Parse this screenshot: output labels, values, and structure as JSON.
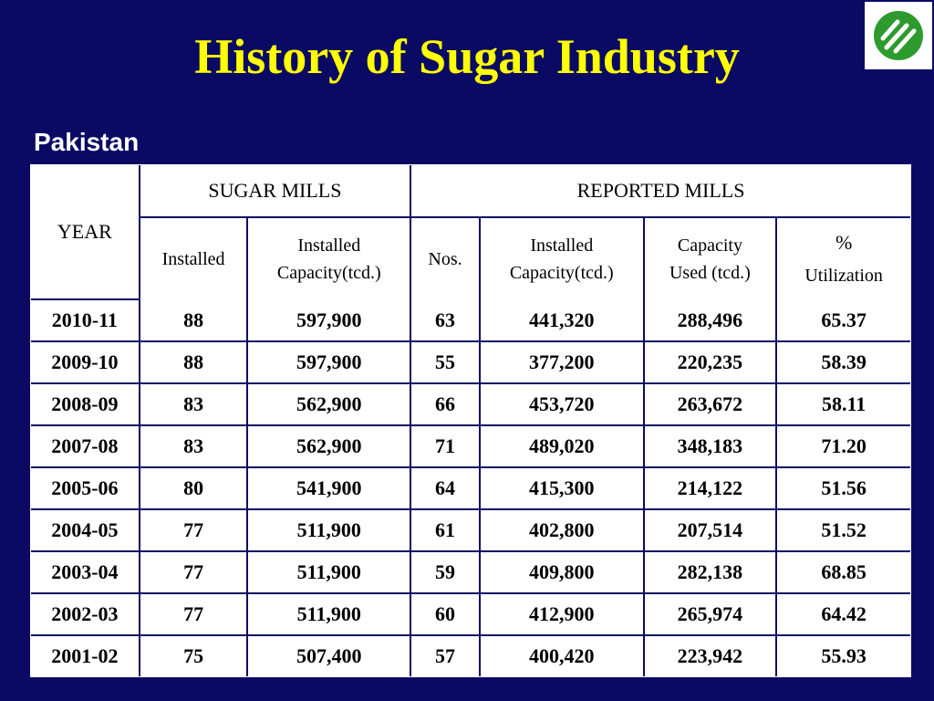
{
  "title": "History of Sugar Industry",
  "subtitle": "Pakistan",
  "logo_icon": "green-stripes-logo-icon",
  "colors": {
    "background": "#0a0a64",
    "title": "#ffff00",
    "logo_green": "#2e9a2e"
  },
  "table": {
    "year_header": "YEAR",
    "group_headers": {
      "sugar_mills": "SUGAR MILLS",
      "reported_mills": "REPORTED MILLS"
    },
    "sub_headers": {
      "installed": "Installed",
      "installed_capacity_line1": "Installed",
      "installed_capacity_line2": "Capacity(tcd.)",
      "nos": "Nos.",
      "reported_installed_capacity_line1": "Installed",
      "reported_installed_capacity_line2": "Capacity(tcd.)",
      "capacity_used_line1": "Capacity",
      "capacity_used_line2": "Used (tcd.)",
      "utilization_symbol": "%",
      "utilization_label": "Utilization"
    },
    "rows": [
      {
        "year": "2010-11",
        "installed": "88",
        "installed_capacity": "597,900",
        "nos": "63",
        "reported_capacity": "441,320",
        "capacity_used": "288,496",
        "utilization": "65.37"
      },
      {
        "year": "2009-10",
        "installed": "88",
        "installed_capacity": "597,900",
        "nos": "55",
        "reported_capacity": "377,200",
        "capacity_used": "220,235",
        "utilization": "58.39"
      },
      {
        "year": "2008-09",
        "installed": "83",
        "installed_capacity": "562,900",
        "nos": "66",
        "reported_capacity": "453,720",
        "capacity_used": "263,672",
        "utilization": "58.11"
      },
      {
        "year": "2007-08",
        "installed": "83",
        "installed_capacity": "562,900",
        "nos": "71",
        "reported_capacity": "489,020",
        "capacity_used": "348,183",
        "utilization": "71.20"
      },
      {
        "year": "2005-06",
        "installed": "80",
        "installed_capacity": "541,900",
        "nos": "64",
        "reported_capacity": "415,300",
        "capacity_used": "214,122",
        "utilization": "51.56"
      },
      {
        "year": "2004-05",
        "installed": "77",
        "installed_capacity": "511,900",
        "nos": "61",
        "reported_capacity": "402,800",
        "capacity_used": "207,514",
        "utilization": "51.52"
      },
      {
        "year": "2003-04",
        "installed": "77",
        "installed_capacity": "511,900",
        "nos": "59",
        "reported_capacity": "409,800",
        "capacity_used": "282,138",
        "utilization": "68.85"
      },
      {
        "year": "2002-03",
        "installed": "77",
        "installed_capacity": "511,900",
        "nos": "60",
        "reported_capacity": "412,900",
        "capacity_used": "265,974",
        "utilization": "64.42"
      },
      {
        "year": "2001-02",
        "installed": "75",
        "installed_capacity": "507,400",
        "nos": "57",
        "reported_capacity": "400,420",
        "capacity_used": "223,942",
        "utilization": "55.93"
      }
    ]
  }
}
